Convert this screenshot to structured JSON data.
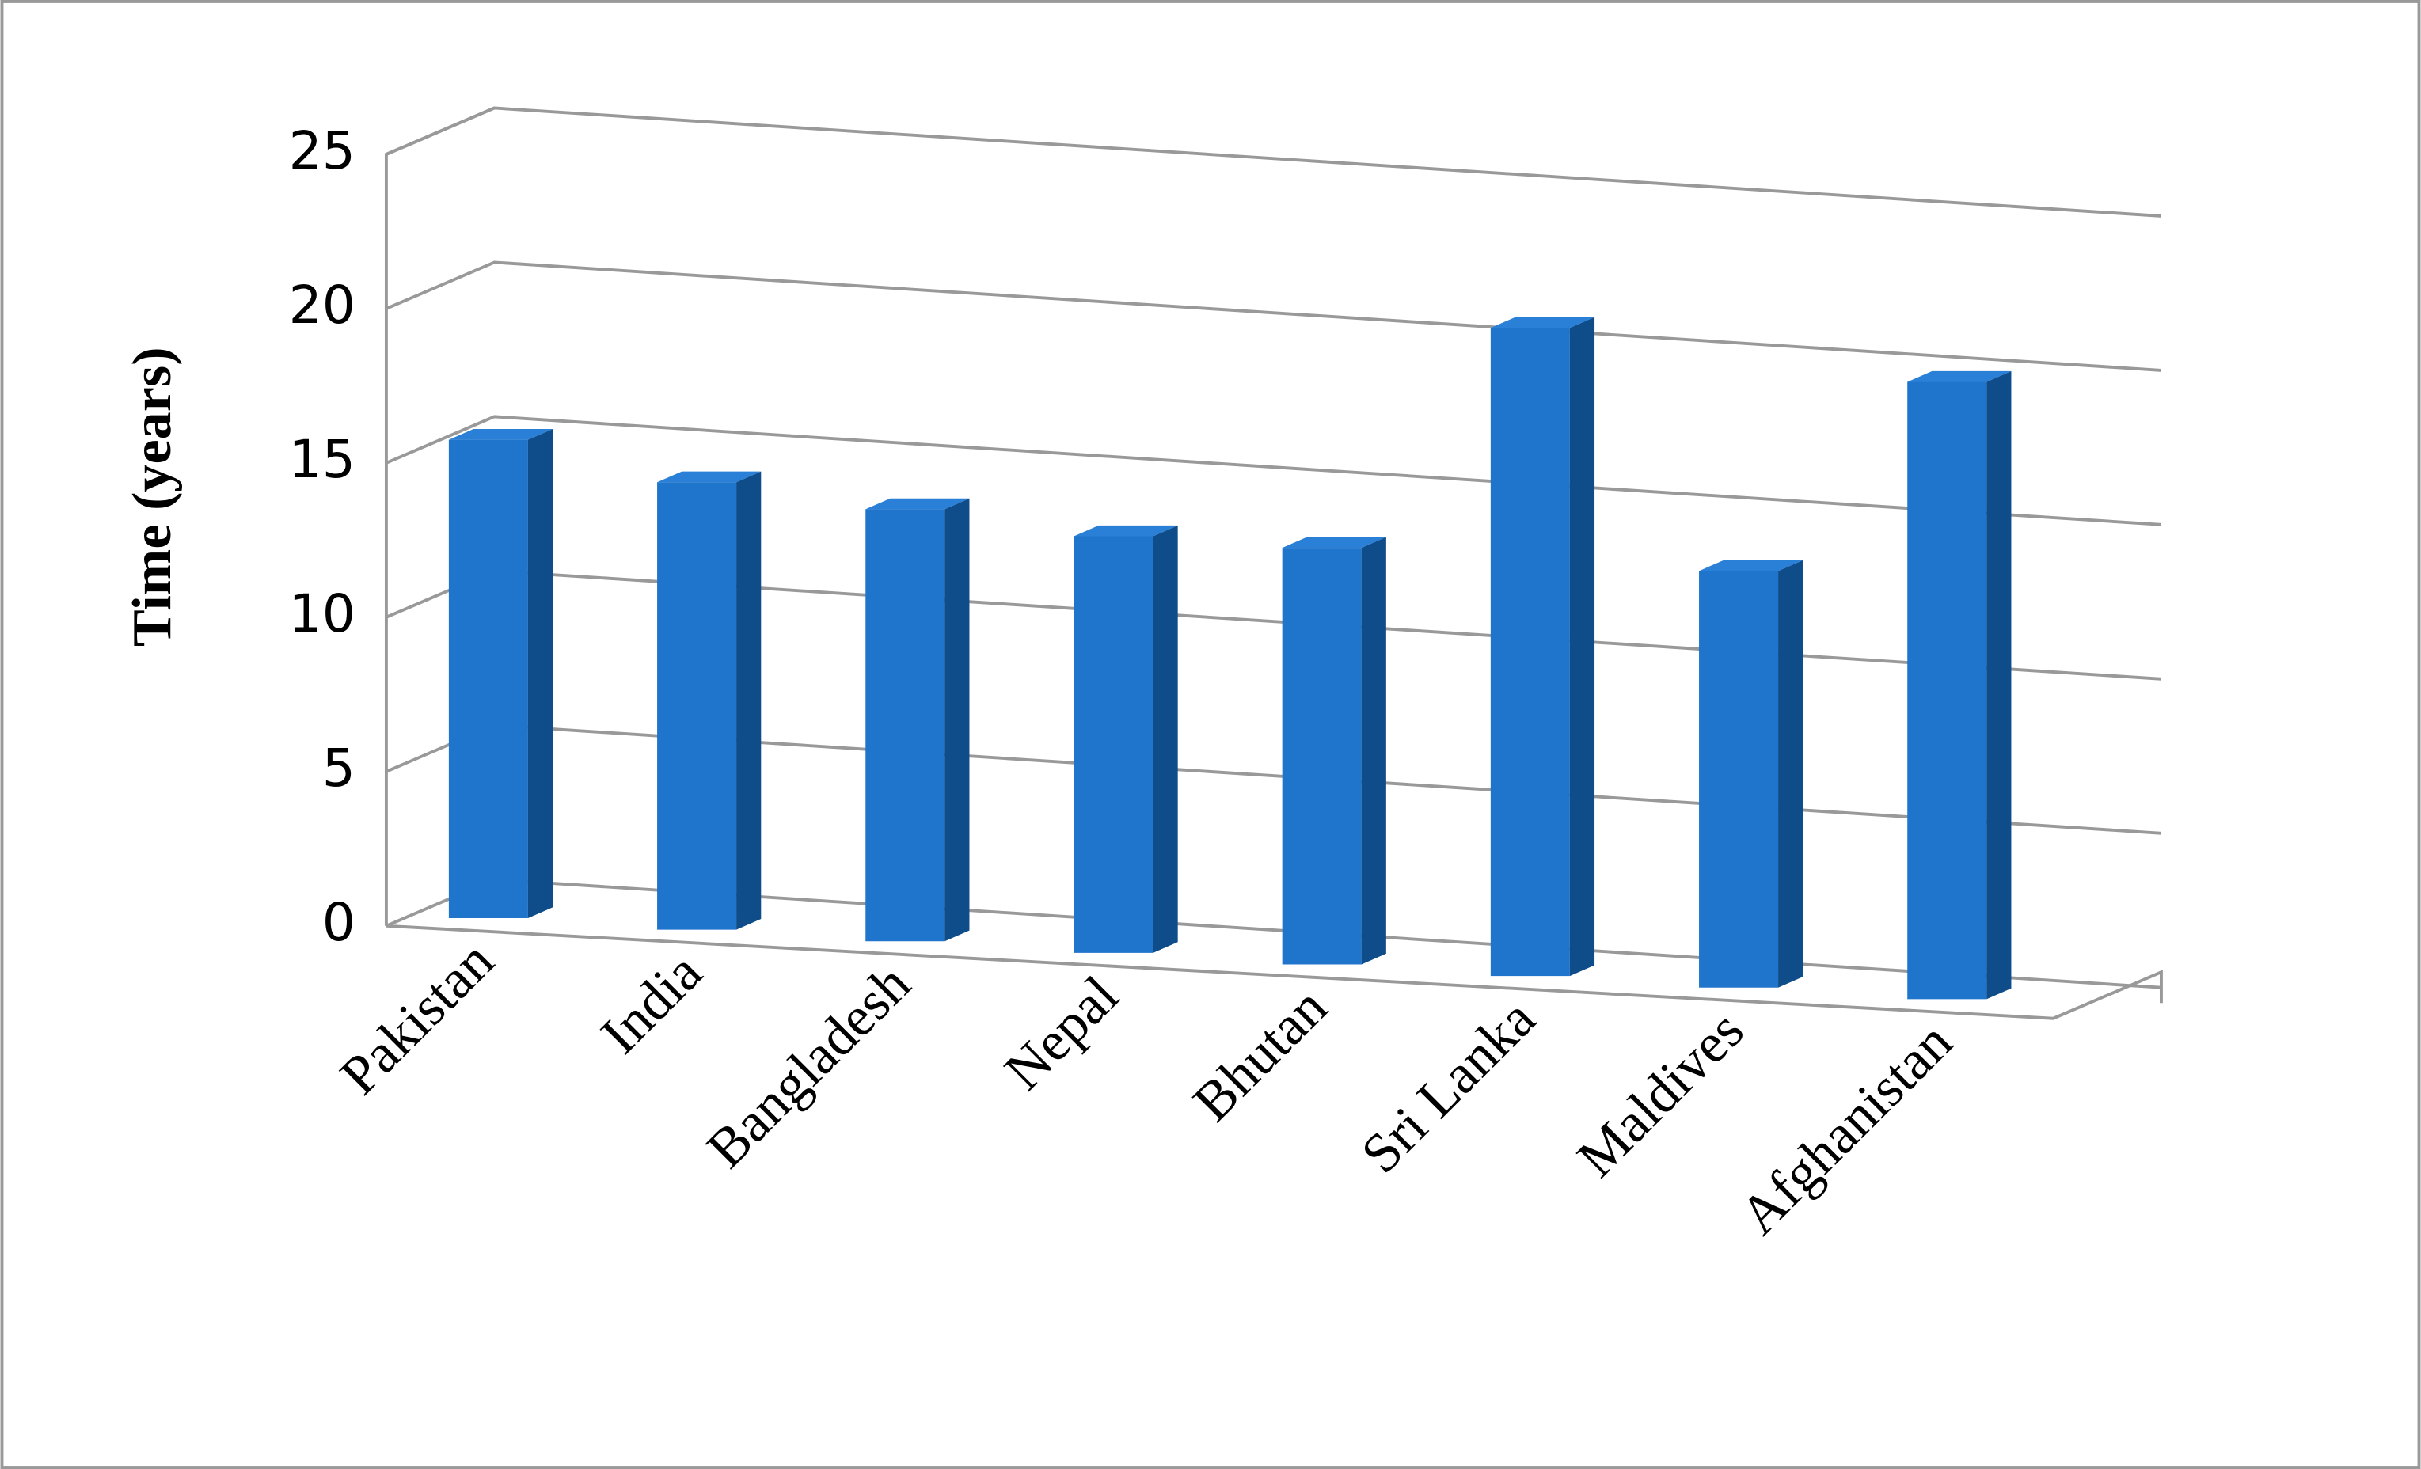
{
  "chart_data": {
    "type": "bar3d",
    "y_label": "Time (years)",
    "categories": [
      "Pakistan",
      "India",
      "Bangladesh",
      "Nepal",
      "Bhutan",
      "Sri Lanka",
      "Maldives",
      "Afghanistan"
    ],
    "values": [
      15.5,
      14.5,
      14,
      13.5,
      13.5,
      21,
      13.5,
      20
    ],
    "color": "#1f74cc",
    "ylim": [
      0,
      25
    ],
    "yticks": [
      0,
      5,
      10,
      15,
      20,
      25
    ],
    "grid": true
  }
}
